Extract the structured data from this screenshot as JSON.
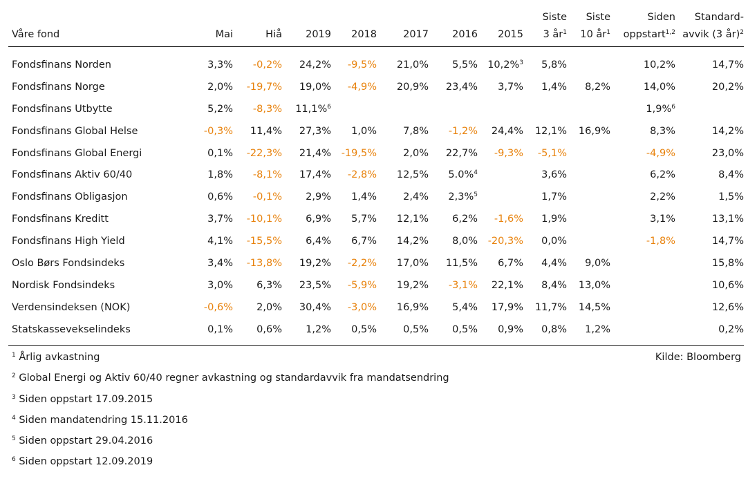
{
  "table": {
    "headers": [
      {
        "lines": [
          "Våre fond"
        ],
        "sup": ""
      },
      {
        "lines": [
          "Mai"
        ],
        "sup": ""
      },
      {
        "lines": [
          "Hiå"
        ],
        "sup": ""
      },
      {
        "lines": [
          "2019"
        ],
        "sup": ""
      },
      {
        "lines": [
          "2018"
        ],
        "sup": ""
      },
      {
        "lines": [
          "2017"
        ],
        "sup": ""
      },
      {
        "lines": [
          "2016"
        ],
        "sup": ""
      },
      {
        "lines": [
          "2015"
        ],
        "sup": ""
      },
      {
        "lines": [
          "Siste",
          "3 år"
        ],
        "sup": "1"
      },
      {
        "lines": [
          "Siste",
          "10 år"
        ],
        "sup": "1"
      },
      {
        "lines": [
          "Siden",
          "oppstart"
        ],
        "sup": "1,2"
      },
      {
        "lines": [
          "Standard-",
          "avvik (3 år)"
        ],
        "sup": "2"
      }
    ],
    "rows": [
      {
        "name": "Fondsfinans Norden",
        "cells": [
          {
            "v": "3,3%"
          },
          {
            "v": "-0,2%",
            "neg": true
          },
          {
            "v": "24,2%"
          },
          {
            "v": "-9,5%",
            "neg": true
          },
          {
            "v": "21,0%"
          },
          {
            "v": "5,5%"
          },
          {
            "v": "10,2%",
            "sup": "3"
          },
          {
            "v": "5,8%"
          },
          {
            "v": ""
          },
          {
            "v": "10,2%"
          },
          {
            "v": "14,7%"
          }
        ]
      },
      {
        "name": "Fondsfinans Norge",
        "cells": [
          {
            "v": "2,0%"
          },
          {
            "v": "-19,7%",
            "neg": true
          },
          {
            "v": "19,0%"
          },
          {
            "v": "-4,9%",
            "neg": true
          },
          {
            "v": "20,9%"
          },
          {
            "v": "23,4%"
          },
          {
            "v": "3,7%"
          },
          {
            "v": "1,4%"
          },
          {
            "v": "8,2%"
          },
          {
            "v": "14,0%"
          },
          {
            "v": "20,2%"
          }
        ]
      },
      {
        "name": "Fondsfinans Utbytte",
        "cells": [
          {
            "v": "5,2%"
          },
          {
            "v": "-8,3%",
            "neg": true
          },
          {
            "v": "11,1%",
            "sup": "6"
          },
          {
            "v": ""
          },
          {
            "v": ""
          },
          {
            "v": ""
          },
          {
            "v": ""
          },
          {
            "v": ""
          },
          {
            "v": ""
          },
          {
            "v": "1,9%",
            "sup": "6"
          },
          {
            "v": ""
          }
        ]
      },
      {
        "name": "Fondsfinans Global Helse",
        "cells": [
          {
            "v": "-0,3%",
            "neg": true
          },
          {
            "v": "11,4%"
          },
          {
            "v": "27,3%"
          },
          {
            "v": "1,0%"
          },
          {
            "v": "7,8%"
          },
          {
            "v": "-1,2%",
            "neg": true
          },
          {
            "v": "24,4%"
          },
          {
            "v": "12,1%"
          },
          {
            "v": "16,9%"
          },
          {
            "v": "8,3%"
          },
          {
            "v": "14,2%"
          }
        ]
      },
      {
        "name": "Fondsfinans Global Energi",
        "cells": [
          {
            "v": "0,1%"
          },
          {
            "v": "-22,3%",
            "neg": true
          },
          {
            "v": "21,4%"
          },
          {
            "v": "-19,5%",
            "neg": true
          },
          {
            "v": "2,0%"
          },
          {
            "v": "22,7%"
          },
          {
            "v": "-9,3%",
            "neg": true
          },
          {
            "v": "-5,1%",
            "neg": true
          },
          {
            "v": ""
          },
          {
            "v": "-4,9%",
            "neg": true
          },
          {
            "v": "23,0%"
          }
        ]
      },
      {
        "name": "Fondsfinans Aktiv 60/40",
        "cells": [
          {
            "v": "1,8%"
          },
          {
            "v": "-8,1%",
            "neg": true
          },
          {
            "v": "17,4%"
          },
          {
            "v": "-2,8%",
            "neg": true
          },
          {
            "v": "12,5%"
          },
          {
            "v": "5.0%",
            "sup": "4"
          },
          {
            "v": ""
          },
          {
            "v": "3,6%"
          },
          {
            "v": ""
          },
          {
            "v": "6,2%"
          },
          {
            "v": "8,4%"
          }
        ]
      },
      {
        "name": "Fondsfinans Obligasjon",
        "cells": [
          {
            "v": "0,6%"
          },
          {
            "v": "-0,1%",
            "neg": true
          },
          {
            "v": "2,9%"
          },
          {
            "v": "1,4%"
          },
          {
            "v": "2,4%"
          },
          {
            "v": "2,3%",
            "sup": "5"
          },
          {
            "v": ""
          },
          {
            "v": "1,7%"
          },
          {
            "v": ""
          },
          {
            "v": "2,2%"
          },
          {
            "v": "1,5%"
          }
        ]
      },
      {
        "name": "Fondsfinans Kreditt",
        "cells": [
          {
            "v": "3,7%"
          },
          {
            "v": "-10,1%",
            "neg": true
          },
          {
            "v": "6,9%"
          },
          {
            "v": "5,7%"
          },
          {
            "v": "12,1%"
          },
          {
            "v": "6,2%"
          },
          {
            "v": "-1,6%",
            "neg": true
          },
          {
            "v": "1,9%"
          },
          {
            "v": ""
          },
          {
            "v": "3,1%"
          },
          {
            "v": "13,1%"
          }
        ]
      },
      {
        "name": "Fondsfinans High Yield",
        "cells": [
          {
            "v": "4,1%"
          },
          {
            "v": "-15,5%",
            "neg": true
          },
          {
            "v": "6,4%"
          },
          {
            "v": "6,7%"
          },
          {
            "v": "14,2%"
          },
          {
            "v": "8,0%"
          },
          {
            "v": "-20,3%",
            "neg": true
          },
          {
            "v": "0,0%"
          },
          {
            "v": ""
          },
          {
            "v": "-1,8%",
            "neg": true
          },
          {
            "v": "14,7%"
          }
        ]
      },
      {
        "name": "Oslo Børs Fondsindeks",
        "cells": [
          {
            "v": "3,4%"
          },
          {
            "v": "-13,8%",
            "neg": true
          },
          {
            "v": "19,2%"
          },
          {
            "v": "-2,2%",
            "neg": true
          },
          {
            "v": "17,0%"
          },
          {
            "v": "11,5%"
          },
          {
            "v": "6,7%"
          },
          {
            "v": "4,4%"
          },
          {
            "v": "9,0%"
          },
          {
            "v": ""
          },
          {
            "v": "15,8%"
          }
        ]
      },
      {
        "name": "Nordisk Fondsindeks",
        "cells": [
          {
            "v": "3,0%"
          },
          {
            "v": "6,3%"
          },
          {
            "v": "23,5%"
          },
          {
            "v": "-5,9%",
            "neg": true
          },
          {
            "v": "19,2%"
          },
          {
            "v": "-3,1%",
            "neg": true
          },
          {
            "v": "22,1%"
          },
          {
            "v": "8,4%"
          },
          {
            "v": "13,0%"
          },
          {
            "v": ""
          },
          {
            "v": "10,6%"
          }
        ]
      },
      {
        "name": "Verdensindeksen (NOK)",
        "cells": [
          {
            "v": "-0,6%",
            "neg": true
          },
          {
            "v": "2,0%"
          },
          {
            "v": "30,4%"
          },
          {
            "v": "-3,0%",
            "neg": true
          },
          {
            "v": "16,9%"
          },
          {
            "v": "5,4%"
          },
          {
            "v": "17,9%"
          },
          {
            "v": "11,7%"
          },
          {
            "v": "14,5%"
          },
          {
            "v": ""
          },
          {
            "v": "12,6%"
          }
        ]
      },
      {
        "name": "Statskassevekselindeks",
        "cells": [
          {
            "v": "0,1%"
          },
          {
            "v": "0,6%"
          },
          {
            "v": "1,2%"
          },
          {
            "v": "0,5%"
          },
          {
            "v": "0,5%"
          },
          {
            "v": "0,5%"
          },
          {
            "v": "0,9%"
          },
          {
            "v": "0,8%"
          },
          {
            "v": "1,2%"
          },
          {
            "v": ""
          },
          {
            "v": "0,2%"
          }
        ]
      }
    ]
  },
  "footnotes": [
    {
      "num": "1",
      "text": "Årlig avkastning"
    },
    {
      "num": "2",
      "text": "Global Energi og Aktiv 60/40 regner avkastning og standardavvik fra mandatsendring"
    },
    {
      "num": "3",
      "text": "Siden oppstart 17.09.2015"
    },
    {
      "num": "4",
      "text": "Siden mandatendring 15.11.2016"
    },
    {
      "num": "5",
      "text": "Siden oppstart 29.04.2016"
    },
    {
      "num": "6",
      "text": "Siden oppstart 12.09.2019"
    }
  ],
  "source": "Kilde: Bloomberg",
  "colors": {
    "negative": "#e8820c",
    "text": "#1a1a1a",
    "rule": "#1a1a1a"
  }
}
